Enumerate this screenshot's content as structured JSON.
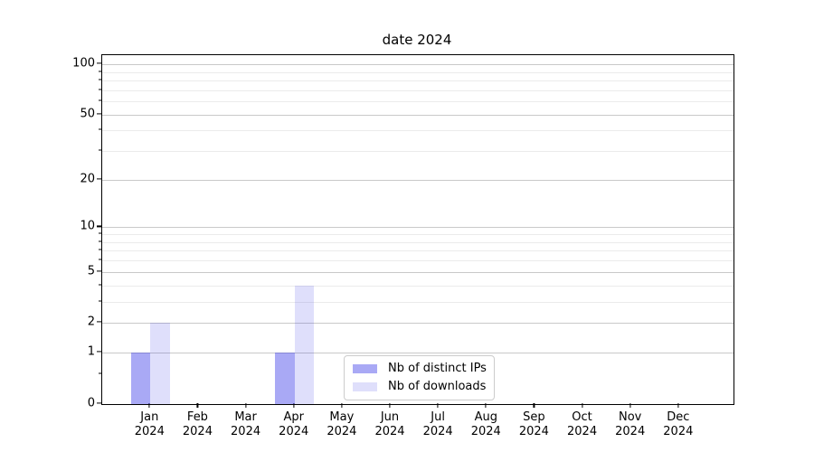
{
  "chart_data": {
    "type": "bar",
    "title": "date 2024",
    "categories": [
      "Jan",
      "Feb",
      "Mar",
      "Apr",
      "May",
      "Jun",
      "Jul",
      "Aug",
      "Sep",
      "Oct",
      "Nov",
      "Dec"
    ],
    "xtick_year": "2024",
    "series": [
      {
        "name": "Nb of distinct IPs",
        "color": "#a9a9f0",
        "fill": "rgba(40,40,230,0.40)",
        "values": [
          1,
          0,
          0,
          1,
          0,
          0,
          0,
          0,
          0,
          0,
          0,
          0
        ]
      },
      {
        "name": "Nb of downloads",
        "color": "#dcdcf7",
        "fill": "rgba(40,40,230,0.15)",
        "values": [
          2,
          0,
          0,
          4,
          0,
          0,
          0,
          0,
          0,
          0,
          0,
          0
        ]
      }
    ],
    "yscale": "log1p",
    "ylim": [
      0,
      114
    ],
    "yticks": [
      0,
      1,
      2,
      5,
      10,
      20,
      50,
      100
    ],
    "yticks_minor": [
      0.5,
      3,
      4,
      6,
      7,
      8,
      9,
      30,
      40,
      60,
      70,
      80,
      90
    ],
    "grid": true,
    "legend": {
      "position": "lower-center"
    },
    "colors": {
      "grid_major": "#c9c9c9",
      "grid_minor": "#ebebeb",
      "axis": "#000000"
    }
  }
}
